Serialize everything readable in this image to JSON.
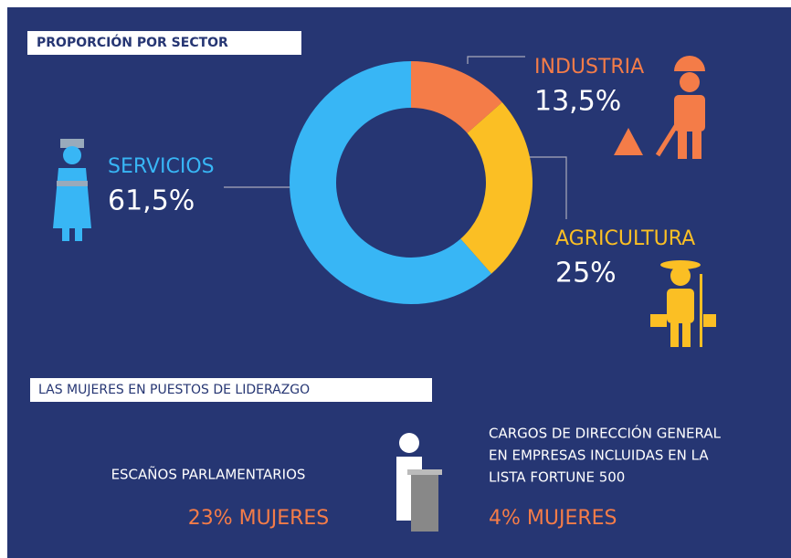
{
  "chart_data": {
    "type": "donut",
    "title": "PROPORCIÓN POR SECTOR",
    "categories": [
      "INDUSTRIA",
      "AGRICULTURA",
      "SERVICIOS"
    ],
    "values": [
      13.5,
      25,
      61.5
    ],
    "value_labels": [
      "13,5%",
      "25%",
      "61,5%"
    ],
    "colors": [
      "#f47c48",
      "#fbbf24",
      "#38b6f5"
    ]
  },
  "leadership": {
    "title": "LAS MUJERES EN PUESTOS DE LIDERAZGO",
    "items": [
      {
        "label": [
          "ESCAÑOS PARLAMENTARIOS"
        ],
        "value": "23% MUJERES"
      },
      {
        "label": [
          "CARGOS DE DIRECCIÓN GENERAL",
          "EN EMPRESAS INCLUIDAS EN LA",
          "LISTA FORTUNE 500"
        ],
        "value": "4% MUJERES"
      }
    ]
  }
}
